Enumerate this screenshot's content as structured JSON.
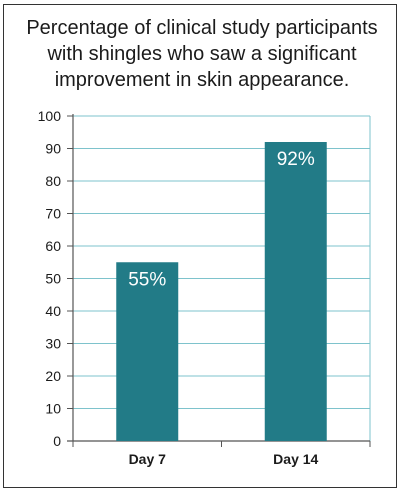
{
  "chart_data": {
    "type": "bar",
    "title_lines": [
      "Percentage of clinical study participants",
      "with shingles who saw a significant",
      "improvement in skin appearance."
    ],
    "categories": [
      "Day 7",
      "Day 14"
    ],
    "values": [
      55,
      92
    ],
    "data_labels": [
      "55%",
      "92%"
    ],
    "xlabel": "",
    "ylabel": "",
    "ylim": [
      0,
      100
    ],
    "yticks": [
      0,
      10,
      20,
      30,
      40,
      50,
      60,
      70,
      80,
      90,
      100
    ],
    "grid": true,
    "bar_color": "#227b87",
    "grid_color": "#7ec3cc",
    "axis_color": "#555555"
  }
}
